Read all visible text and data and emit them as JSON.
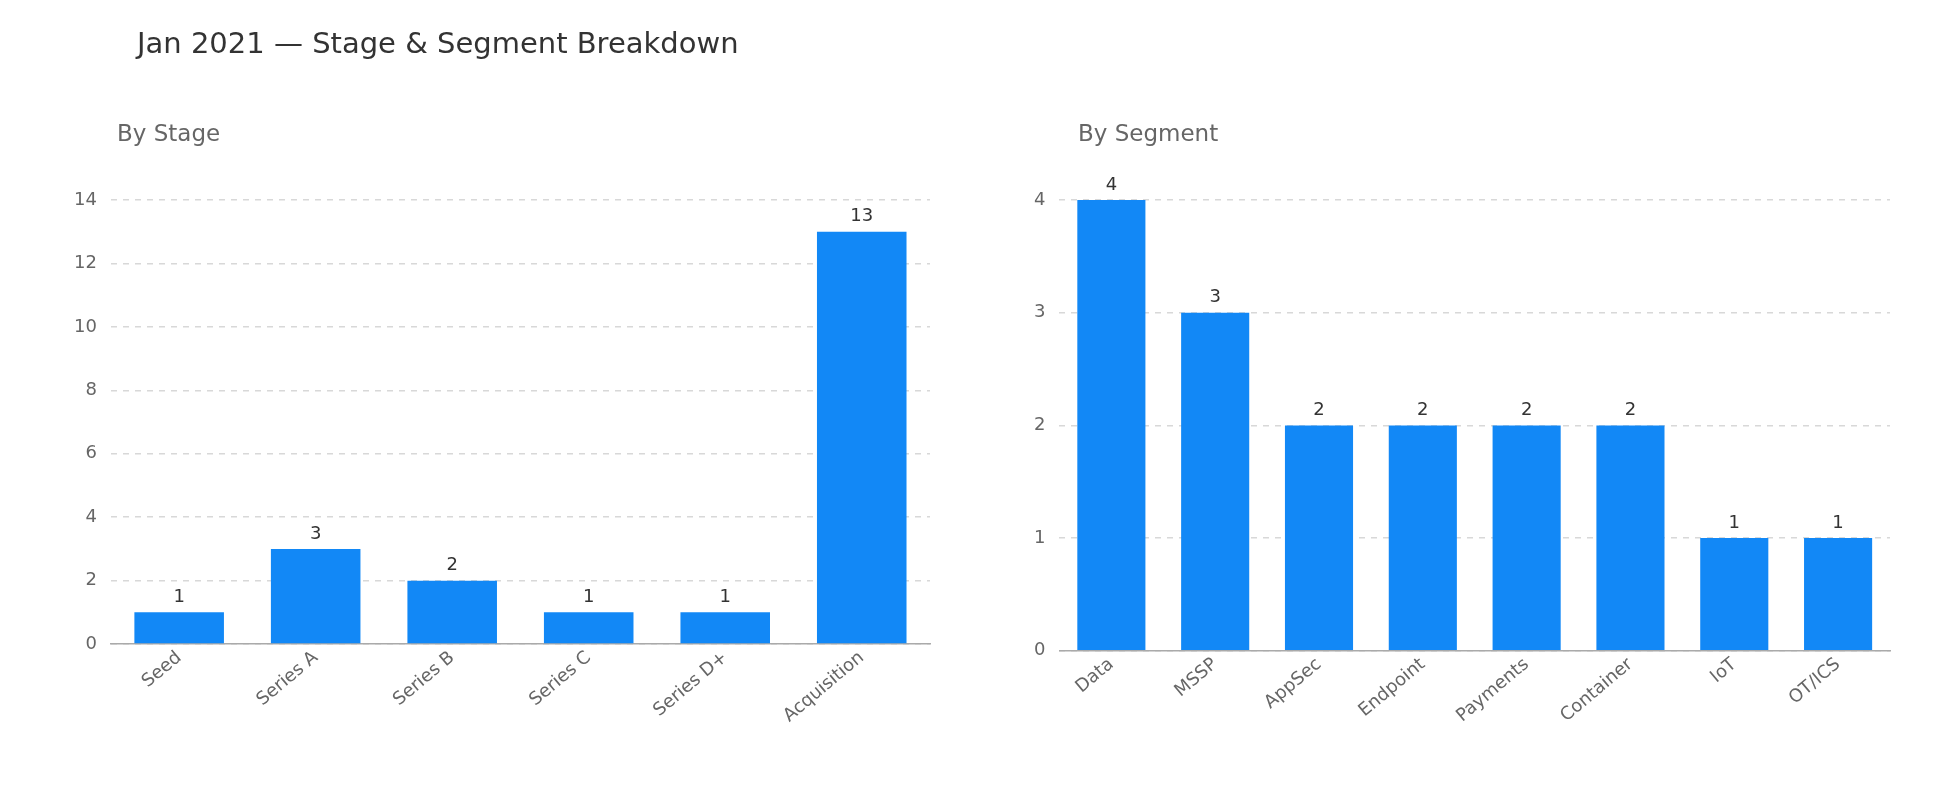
{
  "chart_data": [
    {
      "type": "bar",
      "title": "Jan 2021 — Stage & Segment Breakdown",
      "subtitle": "By Stage",
      "categories": [
        "Seed",
        "Series A",
        "Series B",
        "Series C",
        "Series D+",
        "Acquisition"
      ],
      "values": [
        1,
        3,
        2,
        1,
        1,
        13
      ],
      "color": "#1288f6",
      "ylim": [
        0,
        14
      ],
      "yticks": [
        0,
        2,
        4,
        6,
        8,
        10,
        12,
        14
      ],
      "grid": "y",
      "data_labels": true,
      "legend": false
    },
    {
      "type": "bar",
      "subtitle": "By Segment",
      "categories": [
        "Data",
        "MSSP",
        "AppSec",
        "Endpoint",
        "Payments",
        "Container",
        "IoT",
        "OT/ICS"
      ],
      "values": [
        4,
        3,
        2,
        2,
        2,
        2,
        1,
        1
      ],
      "color": "#1288f6",
      "ylim": [
        0,
        4
      ],
      "yticks": [
        0,
        1,
        2,
        3,
        4
      ],
      "grid": "y",
      "data_labels": true,
      "legend": false
    }
  ]
}
